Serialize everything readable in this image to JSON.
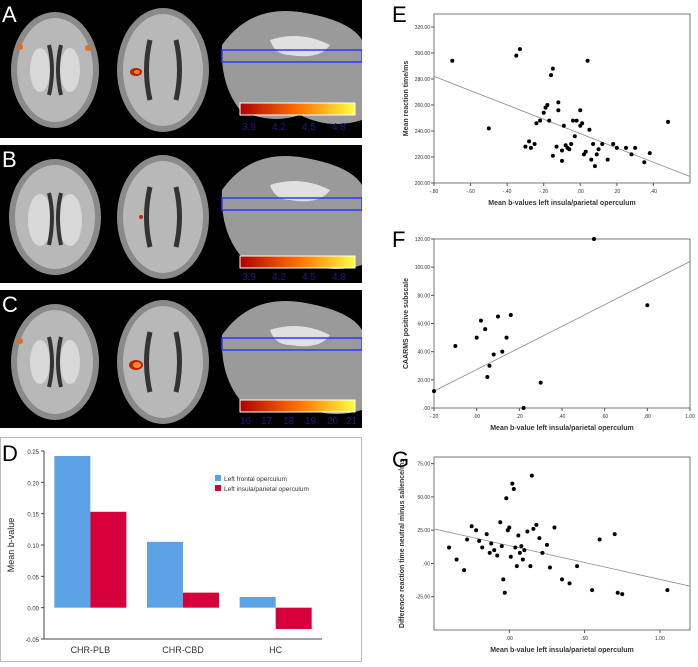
{
  "brain_panels": [
    {
      "letter": "A",
      "colorbar_ticks": [
        "3.9",
        "4.2",
        "4.5",
        "4.8"
      ]
    },
    {
      "letter": "B",
      "colorbar_ticks": [
        "3.9",
        "4.2",
        "4.5",
        "4.8"
      ]
    },
    {
      "letter": "C",
      "colorbar_ticks": [
        "16",
        "17",
        "18",
        "19",
        "20",
        "21"
      ]
    }
  ],
  "colors": {
    "bar_blue": "#5ba3e6",
    "bar_red": "#d6003c",
    "heat_low": "#b00000",
    "heat_high": "#ffff40"
  },
  "chart_data": [
    {
      "panel": "D",
      "type": "bar",
      "title": "",
      "xlabel": "",
      "ylabel": "Mean b-value",
      "categories": [
        "CHR-PLB",
        "CHR-CBD",
        "HC"
      ],
      "series": [
        {
          "name": "Left frontal operculum",
          "values": [
            0.242,
            0.105,
            0.017
          ]
        },
        {
          "name": "Left insula/parietal operculum",
          "values": [
            0.153,
            0.024,
            -0.034
          ]
        }
      ],
      "ylim": [
        -0.05,
        0.25
      ],
      "yticks": [
        "-0.05",
        "0.00",
        "0.05",
        "0.10",
        "0.15",
        "0.20",
        "0.25"
      ],
      "legend": "top-right"
    },
    {
      "panel": "E",
      "type": "scatter",
      "xlabel": "Mean b-values left insula/parietal operculum",
      "ylabel": "Mean reaction time/ms",
      "xlim": [
        -0.8,
        0.6
      ],
      "ylim": [
        200,
        330
      ],
      "xticks": [
        "-.80",
        "-.60",
        "-.40",
        "-.20",
        ".00",
        ".20",
        ".40"
      ],
      "yticks": [
        "200.00",
        "220.00",
        "240.00",
        "260.00",
        "280.00",
        "300.00",
        "320.00"
      ],
      "fit_line": [
        [
          -0.8,
          282
        ],
        [
          0.6,
          205
        ]
      ],
      "x": [
        -0.7,
        -0.5,
        -0.35,
        -0.33,
        -0.3,
        -0.28,
        -0.27,
        -0.25,
        -0.24,
        -0.22,
        -0.2,
        -0.19,
        -0.18,
        -0.17,
        -0.16,
        -0.15,
        -0.15,
        -0.13,
        -0.12,
        -0.12,
        -0.1,
        -0.1,
        -0.09,
        -0.08,
        -0.07,
        -0.06,
        -0.05,
        -0.04,
        -0.03,
        -0.02,
        0.0,
        0.0,
        0.01,
        0.02,
        0.03,
        0.04,
        0.05,
        0.06,
        0.07,
        0.08,
        0.09,
        0.1,
        0.12,
        0.15,
        0.18,
        0.2,
        0.25,
        0.28,
        0.3,
        0.35,
        0.38,
        0.48
      ],
      "y": [
        294,
        242,
        298,
        303,
        228,
        232,
        227,
        230,
        246,
        248,
        254,
        258,
        260,
        248,
        283,
        221,
        288,
        228,
        256,
        262,
        217,
        225,
        244,
        229,
        227,
        226,
        230,
        248,
        236,
        248,
        244,
        256,
        246,
        222,
        224,
        294,
        241,
        218,
        230,
        213,
        222,
        226,
        230,
        218,
        230,
        227,
        227,
        222,
        227,
        216,
        223,
        247
      ]
    },
    {
      "panel": "F",
      "type": "scatter",
      "xlabel": "Mean b-value left insula/parietal operculum",
      "ylabel": "CAARMS positive subscale",
      "xlim": [
        -0.2,
        1.0
      ],
      "ylim": [
        0,
        120
      ],
      "xticks": [
        "-.20",
        ".00",
        ".20",
        ".40",
        ".60",
        ".80",
        "1.00"
      ],
      "yticks": [
        ".00",
        "20.00",
        "40.00",
        "60.00",
        "80.00",
        "100.00",
        "120.00"
      ],
      "fit_line": [
        [
          -0.2,
          12
        ],
        [
          1.0,
          104
        ]
      ],
      "x": [
        -0.2,
        -0.1,
        0.0,
        0.02,
        0.04,
        0.05,
        0.06,
        0.08,
        0.1,
        0.12,
        0.14,
        0.16,
        0.22,
        0.3,
        0.55,
        0.8
      ],
      "y": [
        12,
        44,
        50,
        62,
        56,
        22,
        30,
        38,
        65,
        40,
        50,
        66,
        0,
        18,
        120,
        73
      ]
    },
    {
      "panel": "G",
      "type": "scatter",
      "xlabel": "Mean b-value left insula/parietal operculum",
      "ylabel": "Difference reaction time neutral minus salience/ms",
      "xlim": [
        -0.5,
        1.2
      ],
      "ylim": [
        -50,
        80
      ],
      "xticks": [
        ".00",
        ".50",
        "1.00"
      ],
      "yticks": [
        "-25.00",
        ".00",
        "25.00",
        "50.00",
        "75.00"
      ],
      "fit_line": [
        [
          -0.5,
          26
        ],
        [
          1.2,
          -17
        ]
      ],
      "x": [
        -0.4,
        -0.35,
        -0.3,
        -0.28,
        -0.25,
        -0.22,
        -0.2,
        -0.18,
        -0.15,
        -0.13,
        -0.12,
        -0.1,
        -0.08,
        -0.06,
        -0.05,
        -0.04,
        -0.03,
        -0.02,
        -0.01,
        0.0,
        0.01,
        0.02,
        0.03,
        0.04,
        0.05,
        0.06,
        0.07,
        0.08,
        0.09,
        0.1,
        0.12,
        0.14,
        0.15,
        0.16,
        0.18,
        0.2,
        0.22,
        0.25,
        0.27,
        0.3,
        0.35,
        0.4,
        0.45,
        0.55,
        0.6,
        0.7,
        0.72,
        0.75,
        1.05
      ],
      "y": [
        12,
        3,
        -5,
        18,
        28,
        25,
        17,
        12,
        22,
        8,
        15,
        10,
        6,
        31,
        13,
        -12,
        -22,
        49,
        25,
        27,
        5,
        60,
        56,
        12,
        -2,
        21,
        8,
        13,
        3,
        10,
        24,
        -2,
        66,
        26,
        29,
        19,
        8,
        14,
        -3,
        27,
        -12,
        -15,
        -2,
        -20,
        18,
        22,
        -22,
        -23,
        -20
      ]
    }
  ]
}
